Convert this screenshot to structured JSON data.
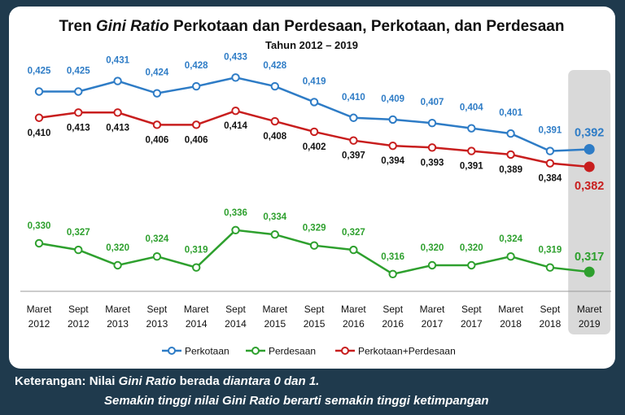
{
  "chart_data": {
    "type": "line",
    "title_prefix": "Tren",
    "title_italic": "Gini Ratio",
    "title_suffix": "Perkotaan dan Perdesaan, Perkotaan, dan Perdesaan",
    "subtitle": "Tahun 2012 – 2019",
    "categories": [
      [
        "Maret",
        "2012"
      ],
      [
        "Sept",
        "2012"
      ],
      [
        "Maret",
        "2013"
      ],
      [
        "Sept",
        "2013"
      ],
      [
        "Maret",
        "2014"
      ],
      [
        "Sept",
        "2014"
      ],
      [
        "Maret",
        "2015"
      ],
      [
        "Sept",
        "2015"
      ],
      [
        "Maret",
        "2016"
      ],
      [
        "Sept",
        "2016"
      ],
      [
        "Maret",
        "2017"
      ],
      [
        "Sept",
        "2017"
      ],
      [
        "Maret",
        "2018"
      ],
      [
        "Sept",
        "2018"
      ],
      [
        "Maret",
        "2019"
      ]
    ],
    "series": [
      {
        "name": "Perkotaan",
        "color": "#2e7cc6",
        "values": [
          0.425,
          0.425,
          0.431,
          0.424,
          0.428,
          0.433,
          0.428,
          0.419,
          0.41,
          0.409,
          0.407,
          0.404,
          0.401,
          0.391,
          0.392
        ],
        "labels": [
          "0,425",
          "0,425",
          "0,431",
          "0,424",
          "0,428",
          "0,433",
          "0,428",
          "0,419",
          "0,410",
          "0,409",
          "0,407",
          "0,404",
          "0,401",
          "0,391",
          "0,392"
        ]
      },
      {
        "name": "Perdesaan",
        "color": "#2ea02e",
        "values": [
          0.33,
          0.327,
          0.32,
          0.324,
          0.319,
          0.336,
          0.334,
          0.329,
          0.327,
          0.316,
          0.32,
          0.32,
          0.324,
          0.319,
          0.317
        ],
        "labels": [
          "0,330",
          "0,327",
          "0,320",
          "0,324",
          "0,319",
          "0,336",
          "0,334",
          "0,329",
          "0,327",
          "0,316",
          "0,320",
          "0,320",
          "0,324",
          "0,319",
          "0,317"
        ]
      },
      {
        "name": "Perkotaan+Perdesaan",
        "color": "#c81e1e",
        "values": [
          0.41,
          0.413,
          0.413,
          0.406,
          0.406,
          0.414,
          0.408,
          0.402,
          0.397,
          0.394,
          0.393,
          0.391,
          0.389,
          0.384,
          0.382
        ],
        "labels": [
          "0,410",
          "0,413",
          "0,413",
          "0,406",
          "0,406",
          "0,414",
          "0,408",
          "0,402",
          "0,397",
          "0,394",
          "0,393",
          "0,391",
          "0,389",
          "0,384",
          "0,382"
        ]
      }
    ],
    "highlight_index": 14,
    "legend_position": "bottom"
  },
  "footer": {
    "label": "Keterangan:",
    "line1_pre": "Nilai",
    "line1_italic": "Gini Ratio",
    "line1_mid": "berada",
    "line1_italic2": "diantara 0 dan 1.",
    "line2": "Semakin tinggi nilai Gini Ratio berarti semakin tinggi ketimpangan"
  }
}
